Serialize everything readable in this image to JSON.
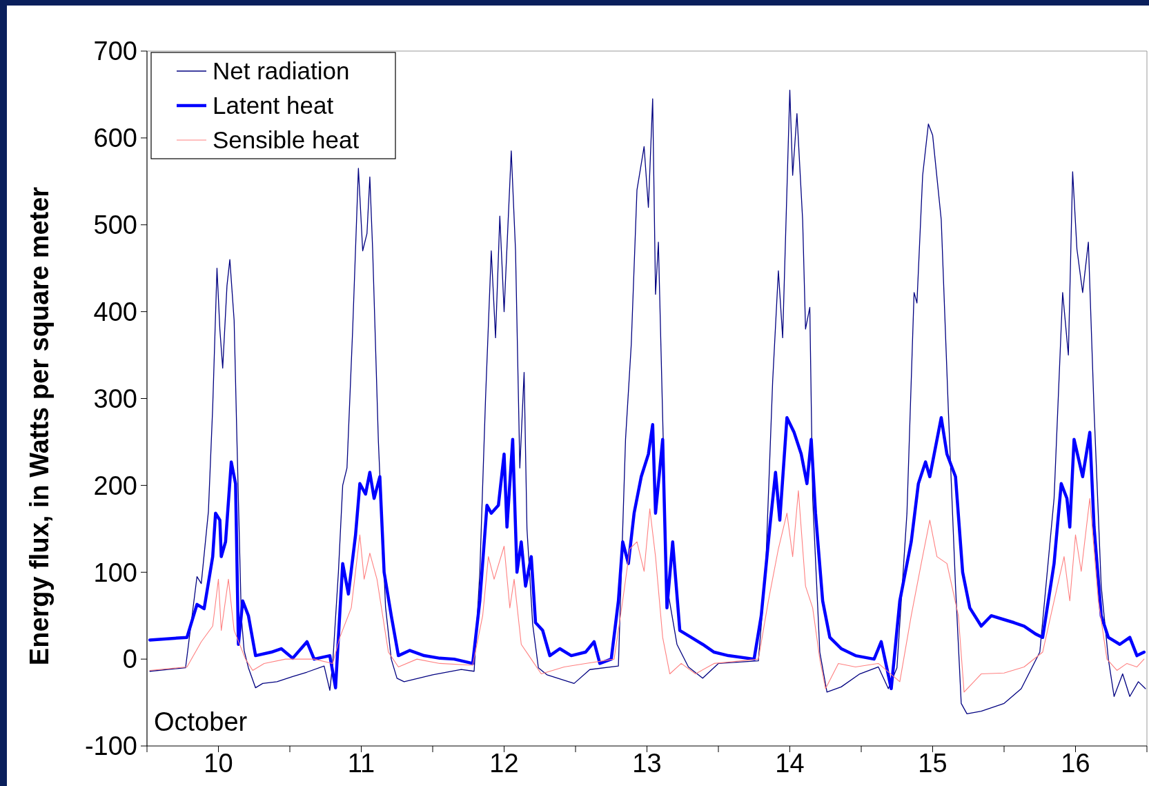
{
  "chart_data": {
    "type": "line",
    "ylabel": "Energy flux, in Watts per square meter",
    "annotations": [
      "October"
    ],
    "xlim": [
      9.5,
      16.5
    ],
    "xticks": [
      {
        "value": 9.5,
        "label": null
      },
      10,
      {
        "value": 10.5,
        "label": null
      },
      11,
      {
        "value": 11.5,
        "label": null
      },
      12,
      {
        "value": 12.5,
        "label": null
      },
      13,
      {
        "value": 13.5,
        "label": null
      },
      14,
      {
        "value": 14.5,
        "label": null
      },
      15,
      {
        "value": 15.5,
        "label": null
      },
      16,
      {
        "value": 16.5,
        "label": null
      }
    ],
    "ylim": [
      -100,
      700
    ],
    "yticks": [
      -100,
      0,
      100,
      200,
      300,
      400,
      500,
      600,
      700
    ],
    "grid": false,
    "legend": "top left",
    "marker": "none",
    "line_style": "solid",
    "series": [
      {
        "name": "Net radiation",
        "color": "#000080",
        "x": [
          9.52,
          9.77,
          9.85,
          9.88,
          9.93,
          9.96,
          9.99,
          10.01,
          10.03,
          10.06,
          10.08,
          10.11,
          10.13,
          10.16,
          10.18,
          10.21,
          10.26,
          10.31,
          10.41,
          10.52,
          10.62,
          10.74,
          10.78,
          10.8,
          10.84,
          10.87,
          10.9,
          10.94,
          10.98,
          11.01,
          11.04,
          11.06,
          11.08,
          11.12,
          11.17,
          11.21,
          11.25,
          11.3,
          11.4,
          11.5,
          11.7,
          11.79,
          11.83,
          11.87,
          11.91,
          11.94,
          11.97,
          12.0,
          12.05,
          12.08,
          12.11,
          12.14,
          12.16,
          12.2,
          12.24,
          12.3,
          12.49,
          12.6,
          12.8,
          12.85,
          12.89,
          12.93,
          12.98,
          13.01,
          13.04,
          13.06,
          13.08,
          13.11,
          13.14,
          13.21,
          13.29,
          13.39,
          13.5,
          13.78,
          13.83,
          13.88,
          13.92,
          13.95,
          14.0,
          14.02,
          14.05,
          14.09,
          14.11,
          14.14,
          14.16,
          14.21,
          14.26,
          14.36,
          14.49,
          14.62,
          14.69,
          14.75,
          14.82,
          14.87,
          14.89,
          14.93,
          14.97,
          15.0,
          15.06,
          15.11,
          15.16,
          15.2,
          15.24,
          15.34,
          15.5,
          15.62,
          15.75,
          15.85,
          15.91,
          15.95,
          15.98,
          16.01,
          16.05,
          16.09,
          16.13,
          16.18,
          16.23,
          16.27,
          16.33,
          16.38,
          16.44,
          16.49
        ],
        "values": [
          -14,
          -10,
          95,
          87,
          170,
          290,
          450,
          380,
          335,
          430,
          460,
          390,
          250,
          50,
          10,
          -10,
          -33,
          -28,
          -26,
          -20,
          -15,
          -8,
          -36,
          -5,
          100,
          200,
          220,
          380,
          565,
          470,
          490,
          555,
          470,
          250,
          60,
          0,
          -22,
          -26,
          -22,
          -18,
          -12,
          -14,
          100,
          300,
          470,
          370,
          510,
          400,
          585,
          470,
          220,
          330,
          150,
          40,
          -10,
          -18,
          -28,
          -12,
          -8,
          253,
          362,
          540,
          590,
          520,
          645,
          420,
          480,
          278,
          84,
          17,
          -9,
          -22,
          -5,
          -2,
          100,
          320,
          447,
          370,
          655,
          557,
          628,
          505,
          380,
          405,
          185,
          8,
          -38,
          -32,
          -17,
          -9,
          -34,
          -10,
          168,
          422,
          410,
          557,
          616,
          603,
          506,
          286,
          84,
          -51,
          -63,
          -60,
          -51,
          -34,
          8,
          185,
          422,
          350,
          561,
          472,
          422,
          480,
          286,
          84,
          0,
          -43,
          -17,
          -43,
          -26,
          -34
        ]
      },
      {
        "name": "Latent heat",
        "color": "#0000ff",
        "x": [
          9.52,
          9.78,
          9.85,
          9.9,
          9.96,
          9.98,
          10.01,
          10.02,
          10.05,
          10.09,
          10.12,
          10.14,
          10.17,
          10.21,
          10.26,
          10.37,
          10.44,
          10.52,
          10.62,
          10.67,
          10.78,
          10.82,
          10.84,
          10.87,
          10.91,
          10.96,
          10.99,
          11.03,
          11.06,
          11.09,
          11.13,
          11.16,
          11.21,
          11.26,
          11.34,
          11.44,
          11.55,
          11.65,
          11.78,
          11.83,
          11.88,
          11.91,
          11.96,
          12.0,
          12.02,
          12.06,
          12.09,
          12.12,
          12.15,
          12.19,
          12.22,
          12.27,
          12.32,
          12.39,
          12.47,
          12.57,
          12.63,
          12.67,
          12.75,
          12.8,
          12.83,
          12.87,
          12.91,
          12.96,
          13.01,
          13.04,
          13.06,
          13.11,
          13.14,
          13.18,
          13.23,
          13.31,
          13.39,
          13.47,
          13.57,
          13.75,
          13.8,
          13.86,
          13.9,
          13.93,
          13.98,
          14.03,
          14.08,
          14.12,
          14.15,
          14.18,
          14.23,
          14.28,
          14.36,
          14.46,
          14.59,
          14.64,
          14.71,
          14.77,
          14.85,
          14.9,
          14.95,
          14.98,
          15.06,
          15.1,
          15.16,
          15.21,
          15.26,
          15.34,
          15.41,
          15.49,
          15.57,
          15.64,
          15.72,
          15.77,
          15.85,
          15.9,
          15.94,
          15.96,
          15.99,
          16.05,
          16.1,
          16.13,
          16.18,
          16.23,
          16.31,
          16.38,
          16.43,
          16.48
        ],
        "values": [
          22,
          25,
          63,
          58,
          118,
          168,
          160,
          118,
          135,
          227,
          202,
          17,
          67,
          50,
          4,
          8,
          12,
          1,
          20,
          0,
          4,
          -33,
          25,
          110,
          75,
          143,
          202,
          190,
          215,
          185,
          210,
          100,
          50,
          4,
          10,
          4,
          1,
          0,
          -5,
          67,
          177,
          168,
          177,
          236,
          152,
          253,
          100,
          135,
          84,
          118,
          42,
          33,
          4,
          12,
          4,
          8,
          20,
          -5,
          0,
          67,
          135,
          110,
          168,
          210,
          236,
          270,
          168,
          253,
          59,
          135,
          33,
          25,
          17,
          8,
          4,
          0,
          50,
          152,
          215,
          160,
          278,
          261,
          236,
          202,
          253,
          168,
          67,
          25,
          12,
          4,
          0,
          20,
          -34,
          67,
          135,
          202,
          227,
          210,
          278,
          236,
          210,
          100,
          59,
          38,
          50,
          46,
          42,
          38,
          29,
          25,
          110,
          202,
          185,
          152,
          253,
          210,
          261,
          152,
          50,
          25,
          17,
          25,
          4,
          8
        ]
      },
      {
        "name": "Sensible heat",
        "color": "#ff8080",
        "x": [
          9.52,
          9.78,
          9.88,
          9.96,
          10.0,
          10.02,
          10.07,
          10.11,
          10.19,
          10.24,
          10.32,
          10.47,
          10.67,
          10.8,
          10.85,
          10.93,
          10.99,
          11.02,
          11.06,
          11.11,
          11.19,
          11.26,
          11.39,
          11.55,
          11.78,
          11.85,
          11.89,
          11.93,
          12.0,
          12.04,
          12.07,
          12.12,
          12.19,
          12.26,
          12.42,
          12.57,
          12.77,
          12.83,
          12.88,
          12.93,
          12.98,
          13.02,
          13.06,
          13.11,
          13.16,
          13.24,
          13.34,
          13.47,
          13.6,
          13.78,
          13.85,
          13.92,
          13.98,
          14.02,
          14.06,
          14.11,
          14.16,
          14.21,
          14.25,
          14.34,
          14.46,
          14.62,
          14.77,
          14.85,
          14.92,
          14.98,
          15.03,
          15.1,
          15.18,
          15.22,
          15.34,
          15.5,
          15.64,
          15.77,
          15.85,
          15.92,
          15.96,
          16.0,
          16.04,
          16.1,
          16.16,
          16.22,
          16.29,
          16.36,
          16.43,
          16.48
        ],
        "values": [
          -13,
          -9,
          20,
          38,
          92,
          33,
          92,
          33,
          0,
          -13,
          -5,
          0,
          0,
          -5,
          25,
          59,
          143,
          92,
          122,
          92,
          8,
          -9,
          0,
          -5,
          -7,
          50,
          118,
          92,
          130,
          59,
          92,
          17,
          0,
          -17,
          -9,
          -5,
          0,
          67,
          127,
          135,
          101,
          173,
          118,
          25,
          -17,
          -5,
          -17,
          -5,
          -3,
          0,
          67,
          127,
          168,
          118,
          194,
          84,
          59,
          0,
          -34,
          -5,
          -9,
          -5,
          -26,
          50,
          110,
          160,
          118,
          110,
          50,
          -38,
          -17,
          -16,
          -9,
          8,
          67,
          118,
          67,
          143,
          101,
          185,
          67,
          0,
          -13,
          -5,
          -9,
          0
        ]
      }
    ]
  }
}
